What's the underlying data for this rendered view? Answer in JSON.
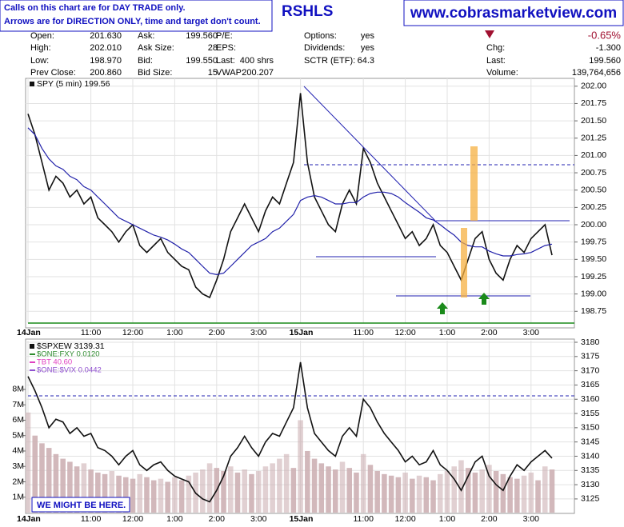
{
  "notes": [
    "Calls on this chart are for DAY TRADE only.",
    "Arrows are for DIRECTION ONLY, time and target don't count."
  ],
  "title": "RSHLS",
  "site": "www.cobrasmarketview.com",
  "quote": {
    "columns": [
      [
        {
          "label": "Open:",
          "value": "201.630"
        },
        {
          "label": "High:",
          "value": "202.010"
        },
        {
          "label": "Low:",
          "value": "198.970"
        },
        {
          "label": "Prev Close:",
          "value": "200.860"
        }
      ],
      [
        {
          "label": "Ask:",
          "value": "199.560"
        },
        {
          "label": "Ask Size:",
          "value": "28"
        },
        {
          "label": "Bid:",
          "value": "199.550"
        },
        {
          "label": "Bid Size:",
          "value": "15"
        }
      ],
      [
        {
          "label": "P/E:"
        },
        {
          "label": "EPS:"
        },
        {
          "label": "Last:",
          "value": "400 shrs"
        },
        {
          "label": "VWAP:",
          "value": "200.207"
        }
      ],
      [
        {
          "label": "Options:",
          "value": "yes"
        },
        {
          "label": "Dividends:",
          "value": "yes"
        },
        {
          "label": "SCTR (ETF):",
          "value": "64.3"
        }
      ],
      [
        {
          "value": "-0.65%"
        },
        {
          "label": "Chg:",
          "value": "-1.300"
        },
        {
          "label": "Last:",
          "value": "199.560"
        },
        {
          "label": "Volume:",
          "value": "139,764,656"
        }
      ]
    ]
  },
  "annotation": "WE MIGHT BE HERE.",
  "chart_data": [
    {
      "type": "line",
      "title": "SPY (5 min) 199.56",
      "categories": [
        "14Jan",
        null,
        null,
        null,
        null,
        null,
        null,
        null,
        null,
        "11:00",
        null,
        null,
        null,
        null,
        null,
        "12:00",
        null,
        null,
        null,
        null,
        null,
        "1:00",
        null,
        null,
        null,
        null,
        null,
        "2:00",
        null,
        null,
        null,
        null,
        null,
        "3:00",
        null,
        null,
        null,
        null,
        null,
        "15Jan",
        null,
        null,
        null,
        null,
        null,
        null,
        null,
        null,
        "11:00",
        null,
        null,
        null,
        null,
        null,
        "12:00",
        null,
        null,
        null,
        null,
        null,
        "1:00",
        null,
        null,
        null,
        null,
        null,
        "2:00",
        null,
        null,
        null,
        null,
        null,
        "3:00",
        null,
        null,
        null
      ],
      "series": [
        {
          "color": "#111111",
          "values": [
            201.6,
            201.3,
            200.9,
            200.5,
            200.7,
            200.6,
            200.4,
            200.5,
            200.3,
            200.4,
            200.1,
            200.0,
            199.9,
            199.75,
            199.9,
            200.0,
            199.7,
            199.6,
            199.7,
            199.8,
            199.6,
            199.5,
            199.4,
            199.35,
            199.1,
            199.0,
            198.95,
            199.2,
            199.5,
            199.9,
            200.1,
            200.3,
            200.1,
            199.9,
            200.2,
            200.4,
            200.3,
            200.6,
            200.9,
            201.9,
            200.9,
            200.4,
            200.2,
            200.0,
            199.9,
            200.3,
            200.5,
            200.3,
            201.1,
            200.9,
            200.6,
            200.4,
            200.2,
            200.0,
            199.8,
            199.9,
            199.7,
            199.8,
            200.0,
            199.7,
            199.6,
            199.4,
            199.2,
            199.5,
            199.8,
            199.9,
            199.5,
            199.3,
            199.2,
            199.5,
            199.7,
            199.6,
            199.8,
            199.9,
            200.0,
            199.56
          ]
        },
        {
          "color": "#2222aa",
          "values": [
            201.4,
            201.3,
            201.1,
            200.95,
            200.85,
            200.8,
            200.7,
            200.65,
            200.55,
            200.5,
            200.4,
            200.3,
            200.2,
            200.1,
            200.05,
            200.0,
            199.95,
            199.9,
            199.85,
            199.82,
            199.78,
            199.72,
            199.65,
            199.6,
            199.5,
            199.4,
            199.3,
            199.28,
            199.3,
            199.4,
            199.5,
            199.6,
            199.7,
            199.75,
            199.8,
            199.9,
            199.95,
            200.05,
            200.15,
            200.35,
            200.4,
            200.42,
            200.4,
            200.35,
            200.3,
            200.3,
            200.32,
            200.32,
            200.4,
            200.45,
            200.47,
            200.47,
            200.45,
            200.4,
            200.32,
            200.25,
            200.18,
            200.1,
            200.07,
            200.0,
            199.92,
            199.85,
            199.75,
            199.7,
            199.68,
            199.68,
            199.62,
            199.58,
            199.55,
            199.55,
            199.57,
            199.58,
            199.6,
            199.65,
            199.7,
            199.72
          ]
        }
      ],
      "ylim": [
        198.58,
        202.09
      ],
      "yticks": [
        {
          "value": 198.75,
          "label": "198.75"
        },
        {
          "value": 199,
          "label": "199.00"
        },
        {
          "value": 199.25,
          "label": "199.25"
        },
        {
          "value": 199.5,
          "label": "199.50"
        },
        {
          "value": 199.75,
          "label": "199.75"
        },
        {
          "value": 200,
          "label": "200.00"
        },
        {
          "value": 200.25,
          "label": "200.25"
        },
        {
          "value": 200.5,
          "label": "200.50"
        },
        {
          "value": 200.75,
          "label": "200.75"
        },
        {
          "value": 201,
          "label": "201.00"
        },
        {
          "value": 201.25,
          "label": "201.25"
        },
        {
          "value": 201.5,
          "label": "201.50"
        },
        {
          "value": 201.75,
          "label": "201.75"
        },
        {
          "value": 202,
          "label": "202.00"
        }
      ],
      "grid": true
    },
    {
      "type": "line",
      "title": "$SPXEW 3139.31",
      "categories": [
        "14Jan",
        null,
        null,
        null,
        null,
        null,
        null,
        null,
        null,
        "11:00",
        null,
        null,
        null,
        null,
        null,
        "12:00",
        null,
        null,
        null,
        null,
        null,
        "1:00",
        null,
        null,
        null,
        null,
        null,
        "2:00",
        null,
        null,
        null,
        null,
        null,
        "3:00",
        null,
        null,
        null,
        null,
        null,
        "15Jan",
        null,
        null,
        null,
        null,
        null,
        null,
        null,
        null,
        "11:00",
        null,
        null,
        null,
        null,
        null,
        "12:00",
        null,
        null,
        null,
        null,
        null,
        "1:00",
        null,
        null,
        null,
        null,
        null,
        "2:00",
        null,
        null,
        null,
        null,
        null,
        "3:00",
        null,
        null,
        null
      ],
      "overlays": [
        {
          "name": "$ONE:FXY 0.0120",
          "color": "#2e8b2e"
        },
        {
          "name": "TBT 40.60",
          "color": "#e040c0"
        },
        {
          "name": "$ONE:$VIX 0.0442",
          "color": "#9050d0"
        }
      ],
      "series": [
        {
          "type": "bar",
          "axis": "y2",
          "color": "#cdb0b4",
          "values": [
            6500000,
            5000000,
            4500000,
            4200000,
            3800000,
            3500000,
            3300000,
            3000000,
            3200000,
            2800000,
            2600000,
            2500000,
            2700000,
            2400000,
            2300000,
            2200000,
            2500000,
            2300000,
            2100000,
            2200000,
            2000000,
            2300000,
            2100000,
            2400000,
            2600000,
            2800000,
            3200000,
            2900000,
            2700000,
            3000000,
            2600000,
            2800000,
            2500000,
            2700000,
            3000000,
            3200000,
            3500000,
            3800000,
            2900000,
            6000000,
            4000000,
            3500000,
            3200000,
            3000000,
            2800000,
            3300000,
            2900000,
            2600000,
            3800000,
            3100000,
            2700000,
            2500000,
            2400000,
            2300000,
            2600000,
            2200000,
            2400000,
            2300000,
            2100000,
            2500000,
            2700000,
            3000000,
            3400000,
            2900000,
            2600000,
            2800000,
            3100000,
            2700000,
            2500000,
            2300000,
            2200000,
            2400000,
            2600000,
            2100000,
            3000000,
            2800000
          ]
        },
        {
          "type": "line",
          "color": "#111111",
          "values": [
            3168,
            3163,
            3157,
            3150,
            3153,
            3152,
            3148,
            3150,
            3147,
            3148,
            3143,
            3142,
            3140,
            3137,
            3140,
            3142,
            3137,
            3135,
            3137,
            3138,
            3135,
            3133,
            3132,
            3131,
            3127,
            3125,
            3124,
            3128,
            3133,
            3140,
            3143,
            3147,
            3143,
            3140,
            3145,
            3148,
            3147,
            3152,
            3157,
            3173,
            3157,
            3148,
            3145,
            3142,
            3140,
            3147,
            3150,
            3147,
            3160,
            3157,
            3152,
            3148,
            3145,
            3142,
            3138,
            3140,
            3137,
            3138,
            3142,
            3137,
            3135,
            3132,
            3128,
            3133,
            3138,
            3140,
            3133,
            3130,
            3128,
            3133,
            3137,
            3135,
            3138,
            3140,
            3142,
            3139.31
          ]
        }
      ],
      "ylim": [
        3120.2,
        3180
      ],
      "yticks": [
        3125,
        3130,
        3135,
        3140,
        3145,
        3150,
        3155,
        3160,
        3165,
        3170,
        3175,
        3180
      ],
      "y2lim": [
        0,
        11060000
      ],
      "y2ticks": [
        {
          "value": 1000000,
          "label": "1M"
        },
        {
          "value": 2000000,
          "label": "2M"
        },
        {
          "value": 3000000,
          "label": "3M"
        },
        {
          "value": 4000000,
          "label": "4M"
        },
        {
          "value": 5000000,
          "label": "5M"
        },
        {
          "value": 6000000,
          "label": "6M"
        },
        {
          "value": 7000000,
          "label": "7M"
        },
        {
          "value": 8000000,
          "label": "8M"
        }
      ],
      "grid": true
    }
  ]
}
